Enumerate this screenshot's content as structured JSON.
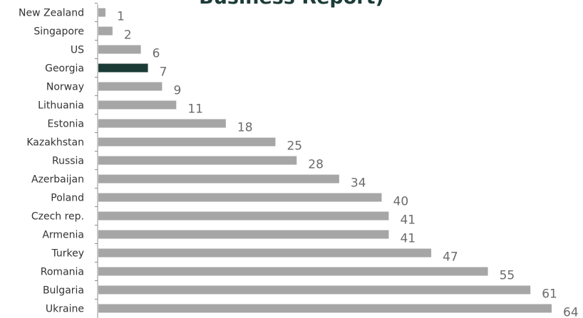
{
  "chart_data": {
    "type": "bar",
    "orientation": "horizontal",
    "title": "Business Report)",
    "categories": [
      "New Zealand",
      "Singapore",
      "US",
      "Georgia",
      "Norway",
      "Lithuania",
      "Estonia",
      "Kazakhstan",
      "Russia",
      "Azerbaijan",
      "Poland",
      "Czech rep.",
      "Armenia",
      "Turkey",
      "Romania",
      "Bulgaria",
      "Ukraine"
    ],
    "values": [
      1,
      2,
      6,
      7,
      9,
      11,
      18,
      25,
      28,
      34,
      40,
      41,
      41,
      47,
      55,
      61,
      64
    ],
    "highlight_category": "Georgia",
    "grid": false,
    "legend": "none"
  },
  "colors": {
    "bar": "#a6a6a6",
    "highlight": "#1b3b37",
    "title": "#1b3b37",
    "axis": "#8c8c8c"
  }
}
